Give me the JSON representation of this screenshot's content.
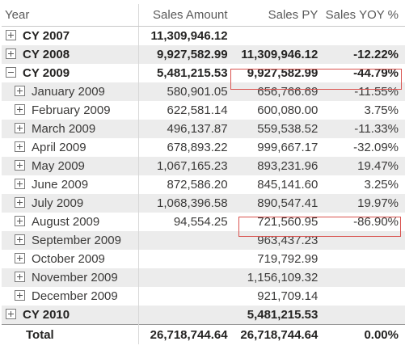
{
  "columns": [
    "Year",
    "Sales Amount",
    "Sales PY",
    "Sales YOY %"
  ],
  "rows": [
    {
      "label": "CY 2007",
      "level": 0,
      "expander": "plus",
      "sales": "11,309,946.12",
      "py": "",
      "yoy": ""
    },
    {
      "label": "CY 2008",
      "level": 0,
      "expander": "plus",
      "sales": "9,927,582.99",
      "py": "11,309,946.12",
      "yoy": "-12.22%"
    },
    {
      "label": "CY 2009",
      "level": 0,
      "expander": "minus",
      "sales": "5,481,215.53",
      "py": "9,927,582.99",
      "yoy": "-44.79%"
    },
    {
      "label": "January 2009",
      "level": 1,
      "expander": "plus",
      "sales": "580,901.05",
      "py": "656,766.69",
      "yoy": "-11.55%"
    },
    {
      "label": "February 2009",
      "level": 1,
      "expander": "plus",
      "sales": "622,581.14",
      "py": "600,080.00",
      "yoy": "3.75%"
    },
    {
      "label": "March 2009",
      "level": 1,
      "expander": "plus",
      "sales": "496,137.87",
      "py": "559,538.52",
      "yoy": "-11.33%"
    },
    {
      "label": "April 2009",
      "level": 1,
      "expander": "plus",
      "sales": "678,893.22",
      "py": "999,667.17",
      "yoy": "-32.09%"
    },
    {
      "label": "May 2009",
      "level": 1,
      "expander": "plus",
      "sales": "1,067,165.23",
      "py": "893,231.96",
      "yoy": "19.47%"
    },
    {
      "label": "June 2009",
      "level": 1,
      "expander": "plus",
      "sales": "872,586.20",
      "py": "845,141.60",
      "yoy": "3.25%"
    },
    {
      "label": "July 2009",
      "level": 1,
      "expander": "plus",
      "sales": "1,068,396.58",
      "py": "890,547.41",
      "yoy": "19.97%"
    },
    {
      "label": "August 2009",
      "level": 1,
      "expander": "plus",
      "sales": "94,554.25",
      "py": "721,560.95",
      "yoy": "-86.90%"
    },
    {
      "label": "September 2009",
      "level": 1,
      "expander": "plus",
      "sales": "",
      "py": "963,437.23",
      "yoy": ""
    },
    {
      "label": "October 2009",
      "level": 1,
      "expander": "plus",
      "sales": "",
      "py": "719,792.99",
      "yoy": ""
    },
    {
      "label": "November 2009",
      "level": 1,
      "expander": "plus",
      "sales": "",
      "py": "1,156,109.32",
      "yoy": ""
    },
    {
      "label": "December 2009",
      "level": 1,
      "expander": "plus",
      "sales": "",
      "py": "921,709.14",
      "yoy": ""
    },
    {
      "label": "CY 2010",
      "level": 0,
      "expander": "plus",
      "sales": "",
      "py": "5,481,215.53",
      "yoy": ""
    }
  ],
  "total": {
    "label": "Total",
    "sales": "26,718,744.64",
    "py": "26,718,744.64",
    "yoy": "0.00%"
  },
  "highlight_color": "#d9534f"
}
